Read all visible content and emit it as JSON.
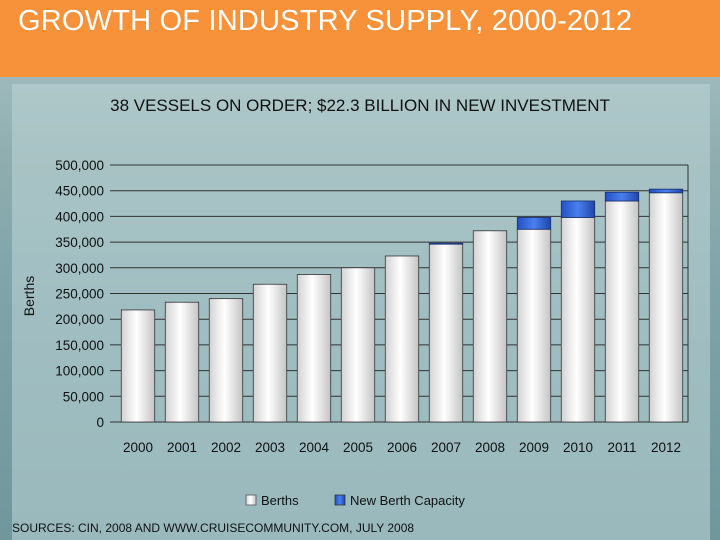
{
  "slide": {
    "title": "GROWTH OF INDUSTRY SUPPLY, 2000-2012",
    "subtitle": "38 VESSELS ON ORDER; $22.3 BILLION IN NEW INVESTMENT",
    "source": "SOURCES: CIN, 2008 AND WWW.CRUISECOMMUNITY.COM, JULY 2008"
  },
  "colors": {
    "header": "#f7923a",
    "berths": "#e8e8e8",
    "new_capacity": "#2e5fd0"
  },
  "chart_data": {
    "type": "bar",
    "stacked": true,
    "title": "38 VESSELS ON ORDER; $22.3 BILLION IN NEW INVESTMENT",
    "xlabel": "",
    "ylabel": "Berths",
    "ylim": [
      0,
      500000
    ],
    "yticks": [
      0,
      50000,
      100000,
      150000,
      200000,
      250000,
      300000,
      350000,
      400000,
      450000,
      500000
    ],
    "ytick_labels": [
      "0",
      "50,000",
      "100,000",
      "150,000",
      "200,000",
      "250,000",
      "300,000",
      "350,000",
      "400,000",
      "450,000",
      "500,000"
    ],
    "categories": [
      "2000",
      "2001",
      "2002",
      "2003",
      "2004",
      "2005",
      "2006",
      "2007",
      "2008",
      "2009",
      "2010",
      "2011",
      "2012"
    ],
    "series": [
      {
        "name": "Berths",
        "values": [
          218000,
          233000,
          240000,
          268000,
          287000,
          300000,
          323000,
          346000,
          372000,
          375000,
          398000,
          430000,
          446000
        ]
      },
      {
        "name": "New Berth Capacity",
        "values": [
          0,
          0,
          0,
          0,
          0,
          0,
          0,
          2000,
          0,
          23000,
          32000,
          17000,
          7000
        ]
      }
    ],
    "legend": [
      "Berths",
      "New Berth Capacity"
    ],
    "legend_position": "bottom",
    "grid": true
  }
}
